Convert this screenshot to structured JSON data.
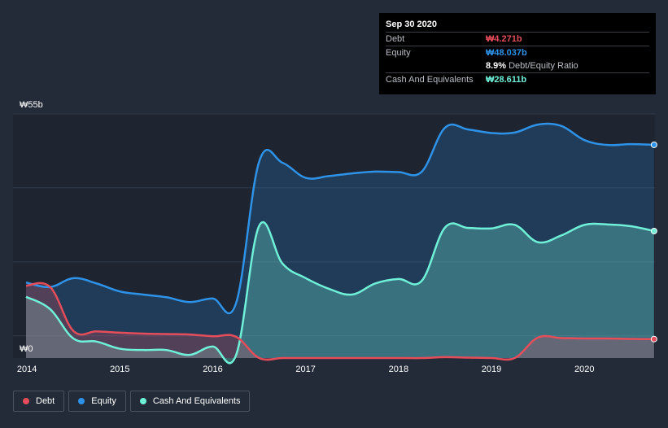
{
  "chart_data": {
    "type": "area",
    "title": "",
    "xlabel": "",
    "ylabel": "",
    "currency_symbol": "₩",
    "ylim": [
      0,
      55
    ],
    "y_ticks": [
      {
        "value": 55,
        "label": "₩55b"
      },
      {
        "value": 0,
        "label": "₩0"
      }
    ],
    "x_ticks": [
      {
        "value": 2014,
        "label": "2014"
      },
      {
        "value": 2015,
        "label": "2015"
      },
      {
        "value": 2016,
        "label": "2016"
      },
      {
        "value": 2017,
        "label": "2017"
      },
      {
        "value": 2018,
        "label": "2018"
      },
      {
        "value": 2019,
        "label": "2019"
      },
      {
        "value": 2020,
        "label": "2020"
      }
    ],
    "xlim": [
      2013.85,
      2020.76
    ],
    "series": [
      {
        "name": "Equity",
        "color": "#2e93e8",
        "x": [
          2013.99,
          2014.25,
          2014.5,
          2014.75,
          2015.0,
          2015.25,
          2015.5,
          2015.75,
          2016.0,
          2016.25,
          2016.5,
          2016.75,
          2017.0,
          2017.25,
          2017.5,
          2017.75,
          2018.0,
          2018.25,
          2018.5,
          2018.75,
          2019.0,
          2019.25,
          2019.5,
          2019.75,
          2020.0,
          2020.25,
          2020.5,
          2020.75
        ],
        "values": [
          17.0,
          16.0,
          18.0,
          16.8,
          15.0,
          14.3,
          13.7,
          12.6,
          13.4,
          12.3,
          44.3,
          44.0,
          40.6,
          41.0,
          41.6,
          42.0,
          41.9,
          42.0,
          51.9,
          51.5,
          50.7,
          50.8,
          52.6,
          52.3,
          49.1,
          48.0,
          48.2,
          48.037
        ]
      },
      {
        "name": "Cash And Equivalents",
        "color": "#6ff0d8",
        "x": [
          2013.99,
          2014.25,
          2014.5,
          2014.75,
          2015.0,
          2015.25,
          2015.5,
          2015.75,
          2016.0,
          2016.25,
          2016.5,
          2016.75,
          2017.0,
          2017.25,
          2017.5,
          2017.75,
          2018.0,
          2018.25,
          2018.5,
          2018.75,
          2019.0,
          2019.25,
          2019.5,
          2019.75,
          2020.0,
          2020.25,
          2020.5,
          2020.75
        ],
        "values": [
          13.8,
          11.0,
          4.4,
          3.7,
          2.1,
          1.8,
          1.8,
          0.7,
          2.6,
          0.6,
          29.8,
          21.3,
          18.0,
          15.6,
          14.3,
          16.8,
          17.8,
          17.4,
          29.4,
          29.3,
          29.2,
          30.0,
          26.1,
          27.6,
          30.0,
          30.1,
          29.7,
          28.611
        ]
      },
      {
        "name": "Debt",
        "color": "#e64d5a",
        "x": [
          2013.99,
          2014.25,
          2014.5,
          2014.75,
          2015.0,
          2015.25,
          2015.5,
          2015.75,
          2016.0,
          2016.25,
          2016.5,
          2016.75,
          2017.0,
          2017.25,
          2017.5,
          2017.75,
          2018.0,
          2018.25,
          2018.5,
          2018.75,
          2019.0,
          2019.25,
          2019.5,
          2019.75,
          2020.0,
          2020.25,
          2020.5,
          2020.75
        ],
        "values": [
          16.3,
          16.0,
          6.1,
          6.0,
          5.7,
          5.5,
          5.4,
          5.3,
          4.9,
          4.8,
          0.0,
          0.0,
          0.0,
          0.0,
          0.0,
          0.0,
          0.0,
          0.0,
          0.2,
          0.1,
          0.0,
          0.0,
          4.6,
          4.5,
          4.4,
          4.4,
          4.3,
          4.271
        ]
      }
    ]
  },
  "tooltip": {
    "date": "Sep 30 2020",
    "debt_label": "Debt",
    "debt_value": "₩4.271b",
    "equity_label": "Equity",
    "equity_value": "₩48.037b",
    "ratio_value": "8.9%",
    "ratio_label": "Debt/Equity Ratio",
    "cash_label": "Cash And Equivalents",
    "cash_value": "₩28.611b"
  },
  "legend": [
    {
      "label": "Debt",
      "color": "#e64d5a"
    },
    {
      "label": "Equity",
      "color": "#2e93e8"
    },
    {
      "label": "Cash And Equivalents",
      "color": "#6ff0d8"
    }
  ]
}
